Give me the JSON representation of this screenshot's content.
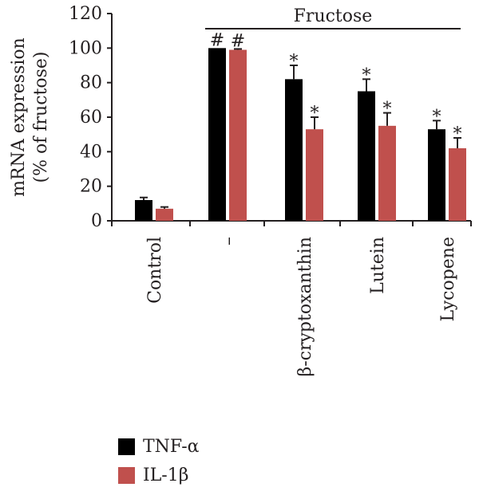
{
  "chart_data": {
    "type": "bar",
    "ylabel_lines": [
      "mRNA expression",
      "(% of fructose)"
    ],
    "ylim": [
      0,
      120
    ],
    "yticks": [
      "0",
      "20",
      "40",
      "60",
      "80",
      "100",
      "120"
    ],
    "categories": [
      "Control",
      "–",
      "β-cryptoxanthin",
      "Lutein",
      "Lycopene"
    ],
    "group_label": "Fructose",
    "series": [
      {
        "name": "TNF-α",
        "color": "#000000",
        "values": [
          12,
          100,
          82,
          75,
          53
        ],
        "errors": [
          1.5,
          0,
          8,
          7,
          5
        ],
        "marks": [
          "",
          "#",
          "*",
          "*",
          "*"
        ]
      },
      {
        "name": "IL-1β",
        "color": "#c0504d",
        "values": [
          7,
          99,
          53,
          55,
          42
        ],
        "errors": [
          1,
          0.5,
          7,
          7.5,
          6
        ],
        "marks": [
          "",
          "#",
          "*",
          "*",
          "*"
        ]
      }
    ],
    "legend_position": "bottom-left",
    "grid": false
  }
}
